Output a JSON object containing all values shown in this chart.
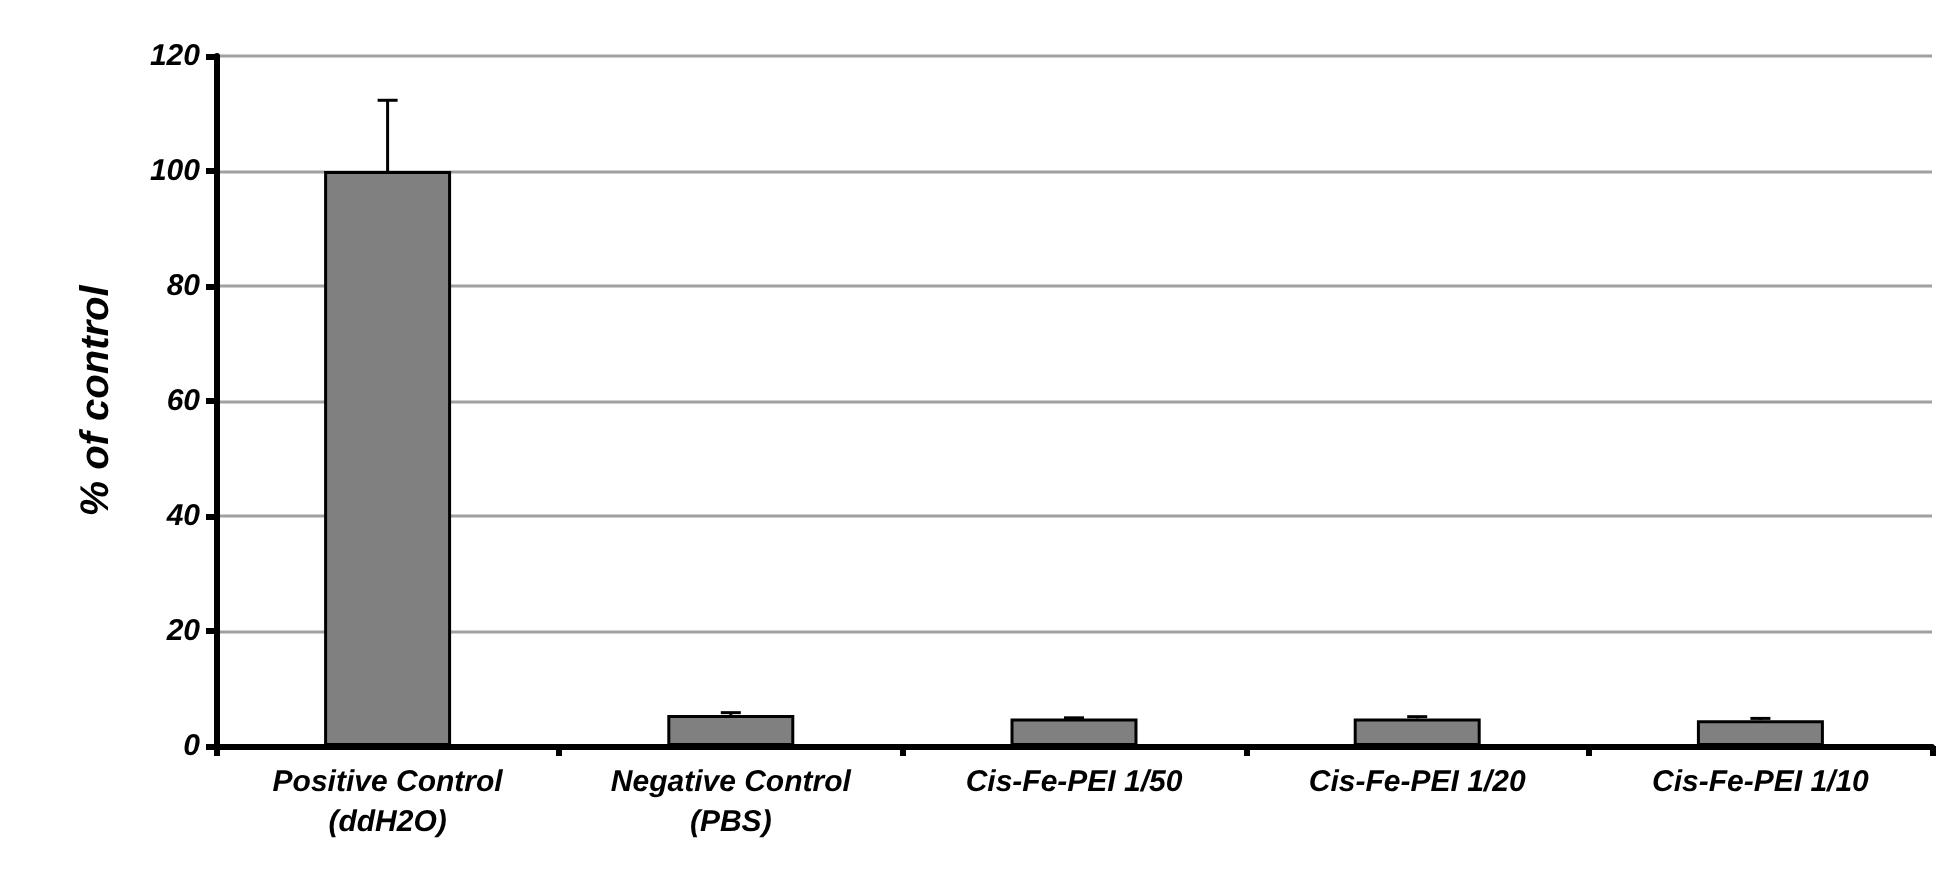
{
  "chart_data": {
    "type": "bar",
    "ylabel": "% of control",
    "categories": [
      "Positive Control\n(ddH2O)",
      "Negative Control\n(PBS)",
      "Cis-Fe-PEI 1/50",
      "Cis-Fe-PEI 1/20",
      "Cis-Fe-PEI 1/10"
    ],
    "values": [
      100,
      5.4,
      4.8,
      4.8,
      4.5
    ],
    "errors": [
      [
        100,
        112.3
      ],
      [
        5.4,
        5.8
      ],
      [
        4.8,
        4.9
      ],
      [
        4.8,
        5.1
      ],
      [
        4.5,
        4.8
      ]
    ],
    "color": "#808080",
    "ylim": [
      0,
      120
    ],
    "yticks": [
      0,
      20,
      40,
      60,
      80,
      100,
      120
    ],
    "grid": "y"
  }
}
